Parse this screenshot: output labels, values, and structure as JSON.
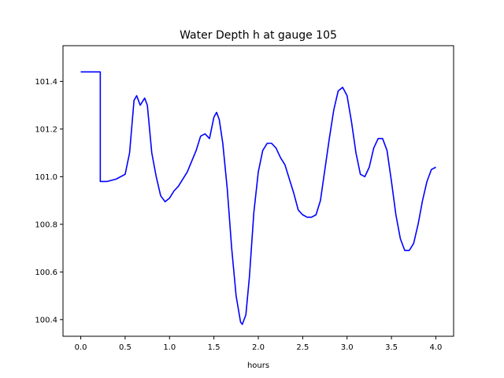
{
  "chart_data": {
    "type": "line",
    "title": "Water Depth h at gauge 105",
    "xlabel": "hours",
    "ylabel": "",
    "xlim": [
      -0.2,
      4.2
    ],
    "ylim": [
      100.33,
      101.55
    ],
    "x_ticks": [
      0.0,
      0.5,
      1.0,
      1.5,
      2.0,
      2.5,
      3.0,
      3.5,
      4.0
    ],
    "x_tick_labels": [
      "0.0",
      "0.5",
      "1.0",
      "1.5",
      "2.0",
      "2.5",
      "3.0",
      "3.5",
      "4.0"
    ],
    "y_ticks": [
      100.4,
      100.6,
      100.8,
      101.0,
      101.2,
      101.4
    ],
    "y_tick_labels": [
      "100.4",
      "100.6",
      "100.8",
      "101.0",
      "101.2",
      "101.4"
    ],
    "grid": false,
    "line_color": "#0000ff",
    "series": [
      {
        "name": "",
        "points": [
          [
            0.0,
            101.44
          ],
          [
            0.1,
            101.44
          ],
          [
            0.2,
            101.44
          ],
          [
            0.22,
            101.44
          ],
          [
            0.22,
            100.98
          ],
          [
            0.3,
            100.98
          ],
          [
            0.4,
            100.99
          ],
          [
            0.5,
            101.01
          ],
          [
            0.55,
            101.1
          ],
          [
            0.6,
            101.32
          ],
          [
            0.63,
            101.34
          ],
          [
            0.67,
            101.3
          ],
          [
            0.72,
            101.33
          ],
          [
            0.75,
            101.3
          ],
          [
            0.8,
            101.1
          ],
          [
            0.85,
            101.0
          ],
          [
            0.9,
            100.92
          ],
          [
            0.95,
            100.895
          ],
          [
            1.0,
            100.91
          ],
          [
            1.05,
            100.94
          ],
          [
            1.1,
            100.96
          ],
          [
            1.2,
            101.02
          ],
          [
            1.3,
            101.11
          ],
          [
            1.35,
            101.17
          ],
          [
            1.4,
            101.18
          ],
          [
            1.45,
            101.16
          ],
          [
            1.5,
            101.25
          ],
          [
            1.53,
            101.27
          ],
          [
            1.56,
            101.24
          ],
          [
            1.6,
            101.14
          ],
          [
            1.65,
            100.95
          ],
          [
            1.7,
            100.7
          ],
          [
            1.75,
            100.5
          ],
          [
            1.8,
            100.39
          ],
          [
            1.82,
            100.38
          ],
          [
            1.86,
            100.42
          ],
          [
            1.9,
            100.58
          ],
          [
            1.95,
            100.85
          ],
          [
            2.0,
            101.02
          ],
          [
            2.05,
            101.11
          ],
          [
            2.1,
            101.14
          ],
          [
            2.15,
            101.14
          ],
          [
            2.2,
            101.12
          ],
          [
            2.25,
            101.08
          ],
          [
            2.3,
            101.05
          ],
          [
            2.35,
            100.99
          ],
          [
            2.4,
            100.93
          ],
          [
            2.45,
            100.86
          ],
          [
            2.5,
            100.84
          ],
          [
            2.55,
            100.83
          ],
          [
            2.6,
            100.83
          ],
          [
            2.65,
            100.84
          ],
          [
            2.7,
            100.9
          ],
          [
            2.75,
            101.03
          ],
          [
            2.8,
            101.16
          ],
          [
            2.85,
            101.28
          ],
          [
            2.9,
            101.36
          ],
          [
            2.95,
            101.375
          ],
          [
            3.0,
            101.34
          ],
          [
            3.05,
            101.23
          ],
          [
            3.1,
            101.1
          ],
          [
            3.15,
            101.01
          ],
          [
            3.2,
            101.0
          ],
          [
            3.25,
            101.04
          ],
          [
            3.3,
            101.12
          ],
          [
            3.35,
            101.16
          ],
          [
            3.4,
            101.16
          ],
          [
            3.45,
            101.11
          ],
          [
            3.5,
            100.98
          ],
          [
            3.55,
            100.84
          ],
          [
            3.6,
            100.74
          ],
          [
            3.65,
            100.69
          ],
          [
            3.7,
            100.69
          ],
          [
            3.75,
            100.72
          ],
          [
            3.8,
            100.8
          ],
          [
            3.85,
            100.9
          ],
          [
            3.9,
            100.98
          ],
          [
            3.95,
            101.03
          ],
          [
            4.0,
            101.04
          ]
        ]
      }
    ]
  }
}
